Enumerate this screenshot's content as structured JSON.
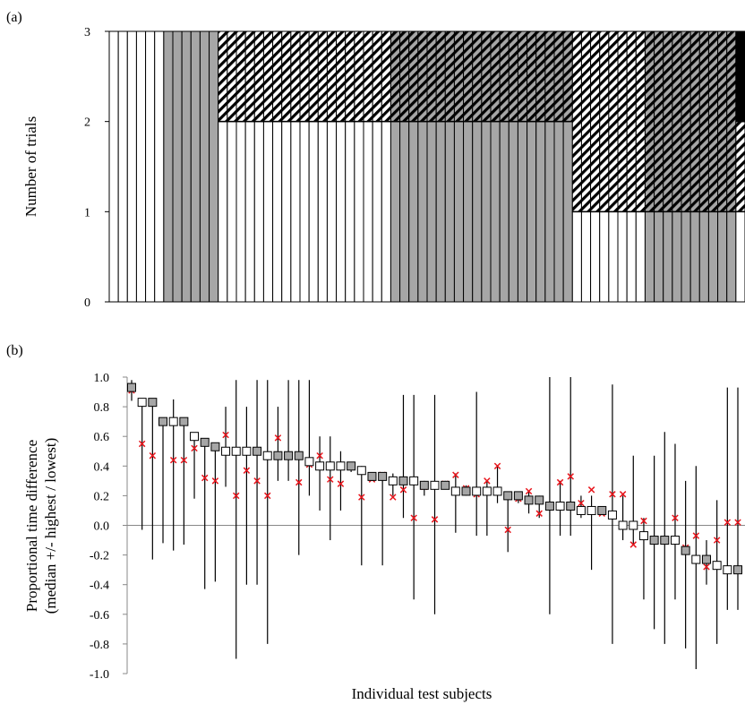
{
  "chart_data": [
    {
      "panel_label": "(a)",
      "type": "bar",
      "subtype": "stacked",
      "ylabel": "Number of trials",
      "xlabel": "",
      "ylim": [
        0,
        3
      ],
      "yticks": [
        "0",
        "1",
        "2",
        "3"
      ],
      "grid": false,
      "legend": null,
      "patterns": {
        "white": "#ffffff",
        "grey": "#a6a6a6",
        "hatch_white": "diagonal hatch on white",
        "hatch_grey": "diagonal hatch on grey",
        "black": "#000000"
      },
      "groups": [
        {
          "count": 6,
          "segments": [
            {
              "pattern": "white",
              "value": 3
            }
          ]
        },
        {
          "count": 6,
          "segments": [
            {
              "pattern": "grey",
              "value": 3
            }
          ]
        },
        {
          "count": 19,
          "segments": [
            {
              "pattern": "white",
              "value": 2
            },
            {
              "pattern": "hatch_white",
              "value": 1
            }
          ]
        },
        {
          "count": 20,
          "segments": [
            {
              "pattern": "grey",
              "value": 2
            },
            {
              "pattern": "hatch_grey",
              "value": 1
            }
          ]
        },
        {
          "count": 8,
          "segments": [
            {
              "pattern": "white",
              "value": 1
            },
            {
              "pattern": "hatch_white",
              "value": 2
            }
          ]
        },
        {
          "count": 10,
          "segments": [
            {
              "pattern": "grey",
              "value": 1
            },
            {
              "pattern": "hatch_grey",
              "value": 2
            }
          ]
        },
        {
          "count": 1,
          "segments": [
            {
              "pattern": "white",
              "value": 1
            },
            {
              "pattern": "hatch_white",
              "value": 1
            },
            {
              "pattern": "black",
              "value": 1
            }
          ]
        }
      ]
    },
    {
      "panel_label": "(b)",
      "type": "scatter",
      "xlabel": "Individual test subjects",
      "ylabel": [
        "Proportional time difference",
        "(median +/- highest / lowest)"
      ],
      "ylim": [
        -1.0,
        1.0
      ],
      "yticks": [
        "-1.0",
        "-0.8",
        "-0.6",
        "-0.4",
        "-0.2",
        "0.0",
        "0.2",
        "0.4",
        "0.6",
        "0.8",
        "1.0"
      ],
      "zero_line": true,
      "grid": false,
      "legend": null,
      "marker_colors": {
        "white": "#ffffff",
        "grey": "#a6a6a6",
        "cross": "#e8141b"
      },
      "points": [
        {
          "m": 0.93,
          "hi": 0.98,
          "lo": 0.84,
          "g": 1,
          "x": 0.91
        },
        {
          "m": 0.83,
          "hi": 0.83,
          "lo": -0.03,
          "g": 0,
          "x": 0.55
        },
        {
          "m": 0.83,
          "hi": 0.83,
          "lo": -0.23,
          "g": 1,
          "x": 0.47
        },
        {
          "m": 0.7,
          "hi": 0.7,
          "lo": -0.12,
          "g": 1,
          "x": 0.7
        },
        {
          "m": 0.7,
          "hi": 0.85,
          "lo": -0.17,
          "g": 0,
          "x": 0.44
        },
        {
          "m": 0.7,
          "hi": 0.7,
          "lo": -0.13,
          "g": 1,
          "x": 0.44
        },
        {
          "m": 0.6,
          "hi": 0.6,
          "lo": 0.18,
          "g": 0,
          "x": 0.52
        },
        {
          "m": 0.56,
          "hi": 0.56,
          "lo": -0.43,
          "g": 1,
          "x": 0.32
        },
        {
          "m": 0.53,
          "hi": 0.53,
          "lo": -0.38,
          "g": 1,
          "x": 0.3
        },
        {
          "m": 0.5,
          "hi": 0.8,
          "lo": 0.26,
          "g": 0,
          "x": 0.61
        },
        {
          "m": 0.5,
          "hi": 0.98,
          "lo": -0.9,
          "g": 0,
          "x": 0.2
        },
        {
          "m": 0.5,
          "hi": 0.8,
          "lo": -0.4,
          "g": 0,
          "x": 0.37
        },
        {
          "m": 0.5,
          "hi": 0.98,
          "lo": -0.4,
          "g": 1,
          "x": 0.3
        },
        {
          "m": 0.47,
          "hi": 0.98,
          "lo": -0.8,
          "g": 0,
          "x": 0.2
        },
        {
          "m": 0.47,
          "hi": 0.8,
          "lo": 0.3,
          "g": 1,
          "x": 0.59
        },
        {
          "m": 0.47,
          "hi": 0.98,
          "lo": 0.3,
          "g": 1,
          "x": 0.47
        },
        {
          "m": 0.47,
          "hi": 0.98,
          "lo": -0.2,
          "g": 1,
          "x": 0.29
        },
        {
          "m": 0.43,
          "hi": 0.98,
          "lo": 0.2,
          "g": 0,
          "x": 0.41
        },
        {
          "m": 0.4,
          "hi": 0.6,
          "lo": 0.1,
          "g": 0,
          "x": 0.47
        },
        {
          "m": 0.4,
          "hi": 0.6,
          "lo": -0.1,
          "g": 0,
          "x": 0.31
        },
        {
          "m": 0.4,
          "hi": 0.5,
          "lo": 0.1,
          "g": 0,
          "x": 0.28
        },
        {
          "m": 0.4,
          "hi": 0.42,
          "lo": 0.36,
          "g": 1,
          "x": 0.4
        },
        {
          "m": 0.37,
          "hi": 0.4,
          "lo": -0.27,
          "g": 0,
          "x": 0.19
        },
        {
          "m": 0.33,
          "hi": 0.33,
          "lo": 0.3,
          "g": 1,
          "x": 0.31
        },
        {
          "m": 0.33,
          "hi": 0.33,
          "lo": -0.27,
          "g": 1,
          "x": 0.34
        },
        {
          "m": 0.3,
          "hi": 0.35,
          "lo": 0.2,
          "g": 0,
          "x": 0.19
        },
        {
          "m": 0.3,
          "hi": 0.88,
          "lo": 0.05,
          "g": 1,
          "x": 0.24
        },
        {
          "m": 0.3,
          "hi": 0.88,
          "lo": -0.5,
          "g": 0,
          "x": 0.05
        },
        {
          "m": 0.27,
          "hi": 0.3,
          "lo": 0.2,
          "g": 1,
          "x": 0.26
        },
        {
          "m": 0.27,
          "hi": 0.88,
          "lo": -0.6,
          "g": 0,
          "x": 0.04
        },
        {
          "m": 0.27,
          "hi": 0.3,
          "lo": 0.25,
          "g": 1,
          "x": 0.28
        },
        {
          "m": 0.23,
          "hi": 0.35,
          "lo": -0.05,
          "g": 0,
          "x": 0.34
        },
        {
          "m": 0.23,
          "hi": 0.27,
          "lo": 0.2,
          "g": 1,
          "x": 0.25
        },
        {
          "m": 0.23,
          "hi": 0.9,
          "lo": -0.07,
          "g": 0,
          "x": 0.21
        },
        {
          "m": 0.23,
          "hi": 0.3,
          "lo": -0.07,
          "g": 0,
          "x": 0.3
        },
        {
          "m": 0.23,
          "hi": 0.4,
          "lo": 0.15,
          "g": 0,
          "x": 0.4
        },
        {
          "m": 0.2,
          "hi": 0.2,
          "lo": -0.18,
          "g": 1,
          "x": -0.03
        },
        {
          "m": 0.2,
          "hi": 0.2,
          "lo": 0.15,
          "g": 1,
          "x": 0.18
        },
        {
          "m": 0.17,
          "hi": 0.23,
          "lo": 0.08,
          "g": 1,
          "x": 0.23
        },
        {
          "m": 0.17,
          "hi": 0.2,
          "lo": 0.05,
          "g": 1,
          "x": 0.08
        },
        {
          "m": 0.13,
          "hi": 1.0,
          "lo": -0.6,
          "g": 1,
          "x": 0.13
        },
        {
          "m": 0.13,
          "hi": 0.3,
          "lo": -0.07,
          "g": 0,
          "x": 0.29
        },
        {
          "m": 0.13,
          "hi": 1.0,
          "lo": -0.07,
          "g": 1,
          "x": 0.33
        },
        {
          "m": 0.1,
          "hi": 0.2,
          "lo": 0.05,
          "g": 0,
          "x": 0.15
        },
        {
          "m": 0.1,
          "hi": 0.2,
          "lo": -0.3,
          "g": 0,
          "x": 0.24
        },
        {
          "m": 0.1,
          "hi": 0.1,
          "lo": 0.07,
          "g": 1,
          "x": 0.08
        },
        {
          "m": 0.07,
          "hi": 0.95,
          "lo": -0.8,
          "g": 0,
          "x": 0.21
        },
        {
          "m": 0.0,
          "hi": 0.2,
          "lo": -0.1,
          "g": 0,
          "x": 0.21
        },
        {
          "m": 0.0,
          "hi": 0.47,
          "lo": -0.13,
          "g": 0,
          "x": -0.13
        },
        {
          "m": -0.07,
          "hi": 0.05,
          "lo": -0.5,
          "g": 0,
          "x": 0.03
        },
        {
          "m": -0.1,
          "hi": 0.47,
          "lo": -0.7,
          "g": 1,
          "x": -0.1
        },
        {
          "m": -0.1,
          "hi": 0.63,
          "lo": -0.8,
          "g": 1,
          "x": -0.1
        },
        {
          "m": -0.1,
          "hi": 0.55,
          "lo": -0.5,
          "g": 0,
          "x": 0.05
        },
        {
          "m": -0.17,
          "hi": 0.3,
          "lo": -0.83,
          "g": 1,
          "x": -0.15
        },
        {
          "m": -0.23,
          "hi": 0.4,
          "lo": -0.97,
          "g": 0,
          "x": -0.07
        },
        {
          "m": -0.23,
          "hi": -0.1,
          "lo": -0.4,
          "g": 1,
          "x": -0.28
        },
        {
          "m": -0.27,
          "hi": 0.17,
          "lo": -0.8,
          "g": 0,
          "x": -0.1
        },
        {
          "m": -0.3,
          "hi": 0.93,
          "lo": -0.57,
          "g": 0,
          "x": 0.02
        },
        {
          "m": -0.3,
          "hi": 0.93,
          "lo": -0.57,
          "g": 1,
          "x": 0.02
        }
      ]
    }
  ]
}
